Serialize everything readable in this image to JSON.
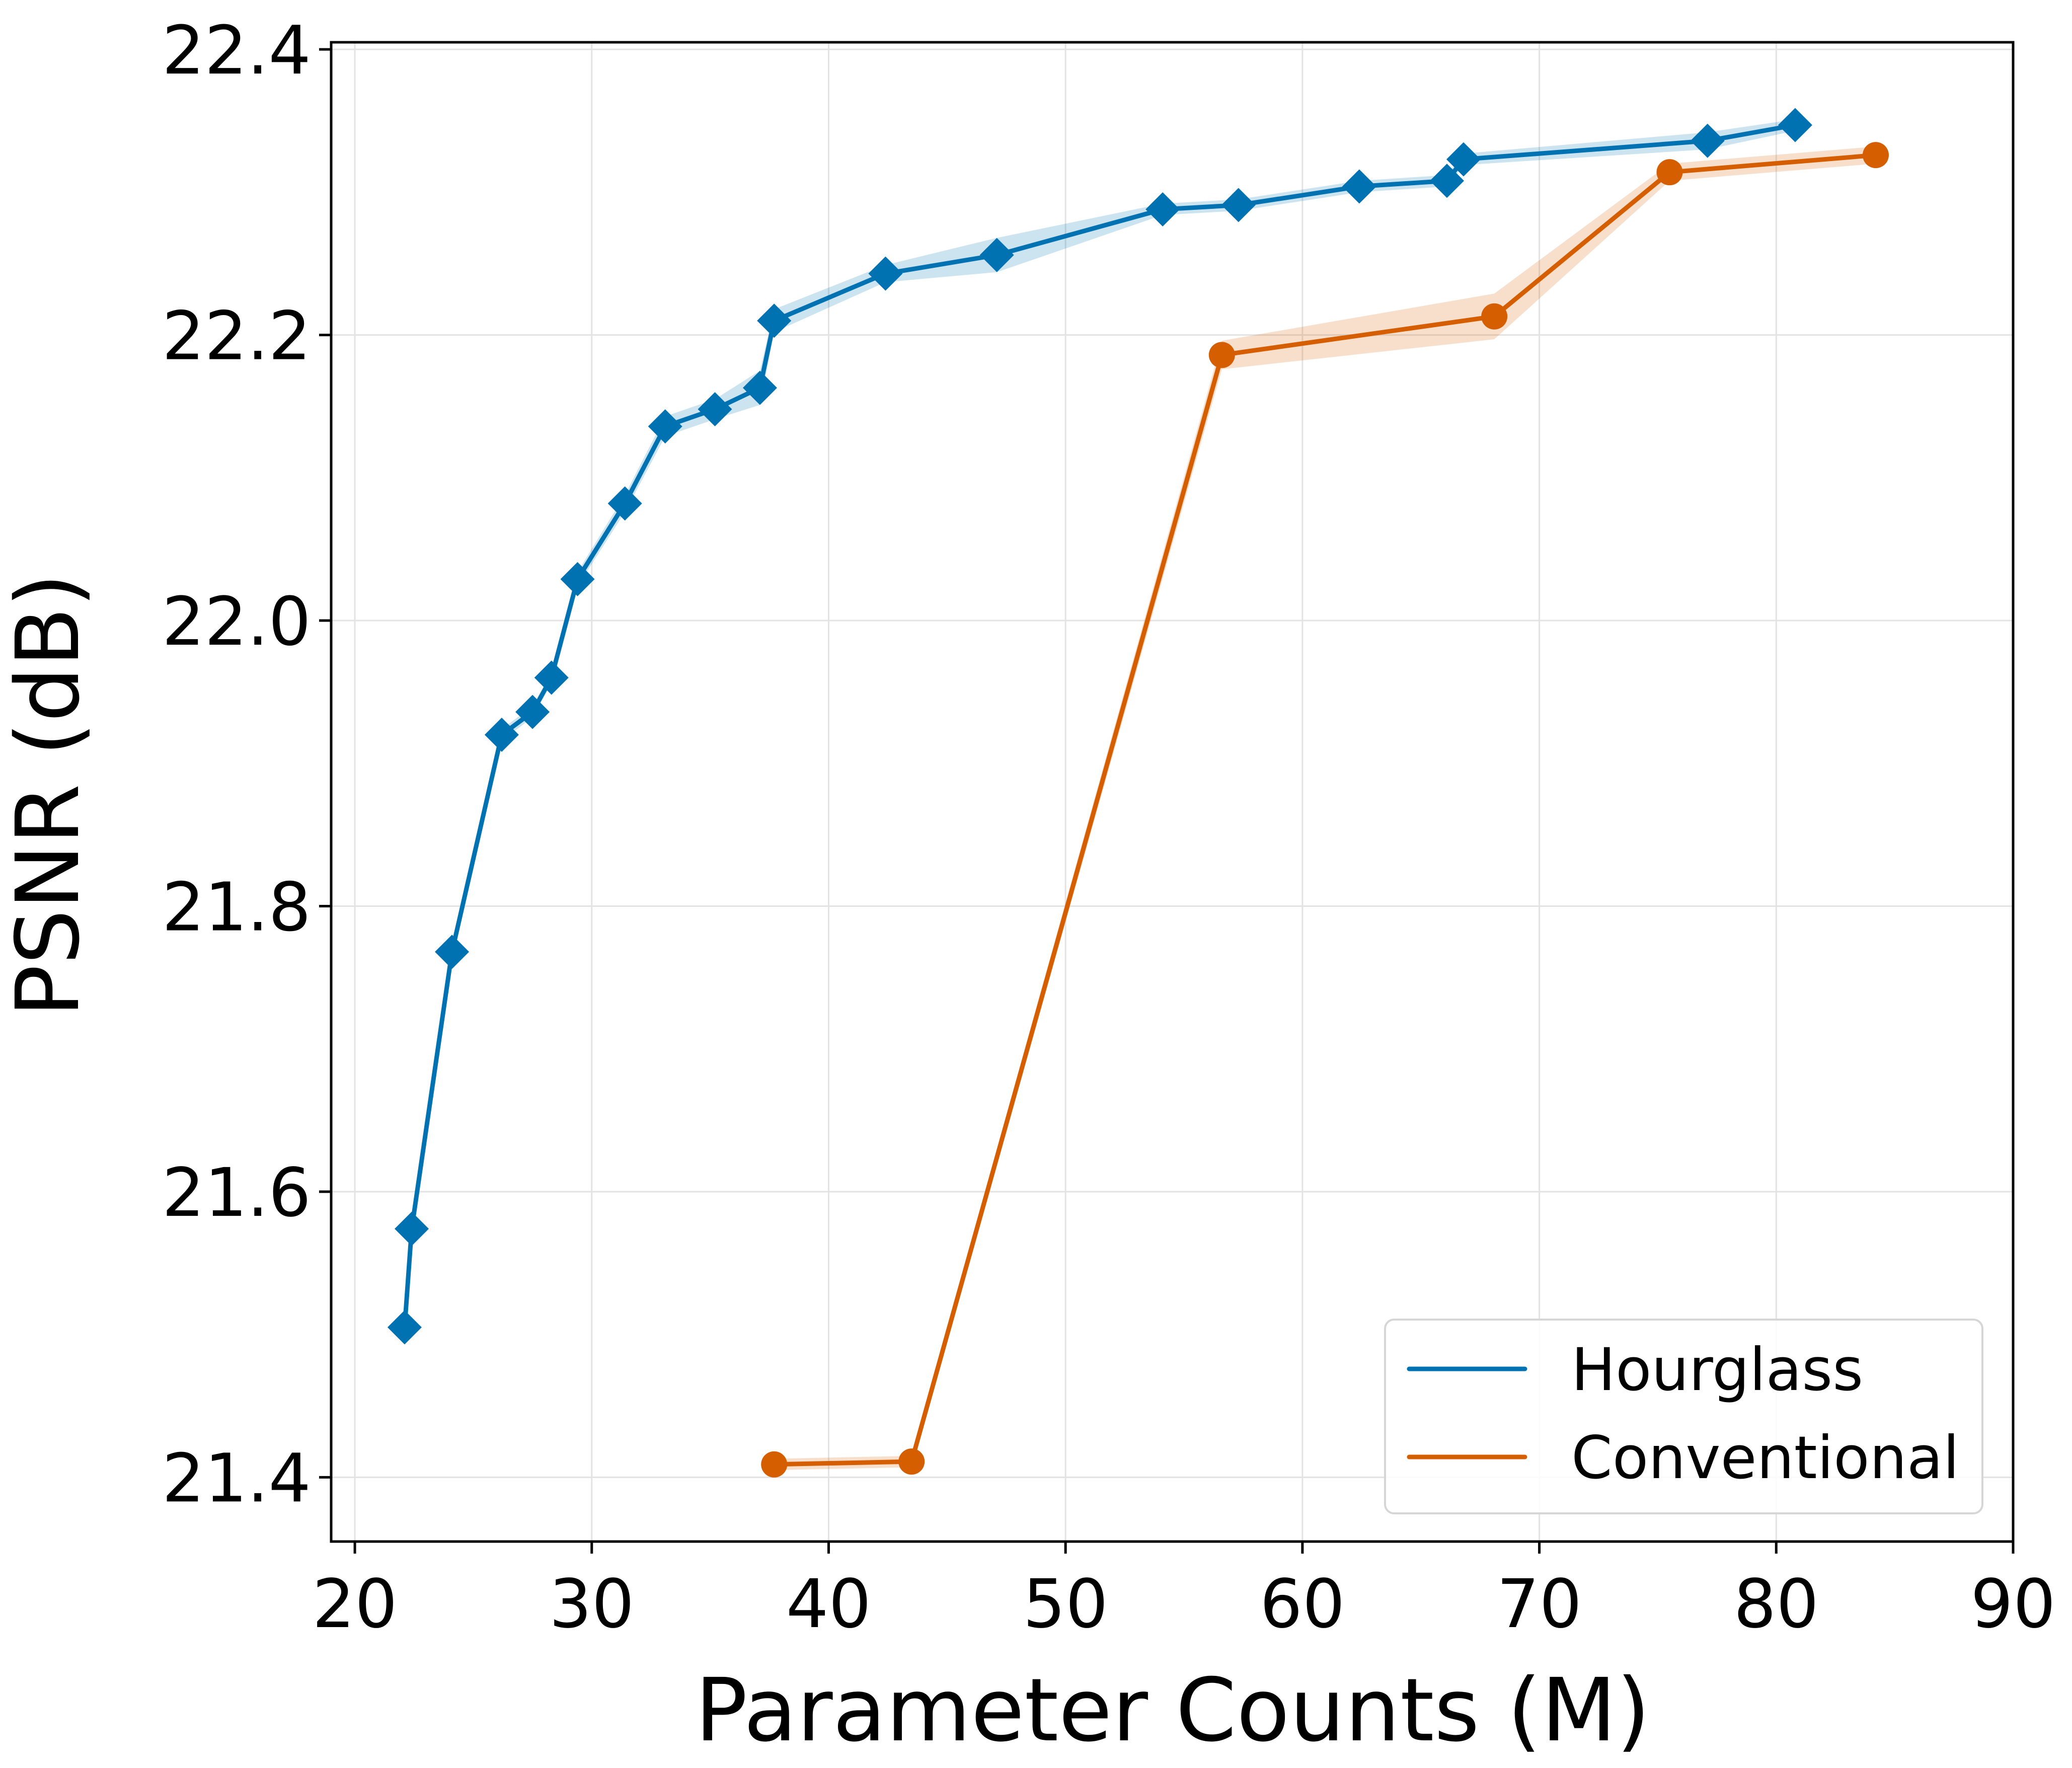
{
  "chart_data": {
    "type": "line",
    "title": "",
    "xlabel": "Parameter Counts (M)",
    "ylabel": "PSNR (dB)",
    "xlim": [
      19,
      90
    ],
    "ylim": [
      21.355,
      22.405
    ],
    "xticks": [
      20,
      30,
      40,
      50,
      60,
      70,
      80,
      90
    ],
    "xtick_labels": [
      "20",
      "30",
      "40",
      "50",
      "60",
      "70",
      "80",
      "90"
    ],
    "yticks": [
      21.4,
      21.6,
      21.8,
      22.0,
      22.2,
      22.4
    ],
    "ytick_labels": [
      "21.4",
      "21.6",
      "21.8",
      "22.0",
      "22.2",
      "22.4"
    ],
    "grid": true,
    "legend_position": "lower-right",
    "series": [
      {
        "name": "Hourglass",
        "color": "#0072b2",
        "marker": "diamond",
        "x": [
          22.1,
          22.4,
          24.1,
          26.2,
          27.5,
          28.3,
          29.4,
          31.4,
          33.1,
          35.2,
          37.1,
          37.7,
          42.4,
          47.1,
          54.1,
          57.3,
          62.4,
          66.1,
          66.8,
          77.1,
          80.8
        ],
        "y": [
          21.505,
          21.574,
          21.768,
          21.92,
          21.936,
          21.96,
          22.029,
          22.082,
          22.136,
          22.148,
          22.163,
          22.21,
          22.243,
          22.256,
          22.288,
          22.291,
          22.304,
          22.308,
          22.323,
          22.336,
          22.347
        ],
        "band": [
          0.004,
          0.004,
          0.004,
          0.004,
          0.004,
          0.004,
          0.005,
          0.006,
          0.007,
          0.007,
          0.012,
          0.008,
          0.006,
          0.012,
          0.004,
          0.004,
          0.004,
          0.004,
          0.004,
          0.006,
          0.004
        ]
      },
      {
        "name": "Conventional",
        "color": "#d55e00",
        "marker": "circle",
        "x": [
          37.7,
          43.5,
          56.6,
          68.1,
          75.5,
          84.2
        ],
        "y": [
          21.409,
          21.411,
          22.186,
          22.213,
          22.314,
          22.326
        ],
        "band": [
          0.004,
          0.004,
          0.01,
          0.016,
          0.006,
          0.006
        ]
      }
    ]
  }
}
